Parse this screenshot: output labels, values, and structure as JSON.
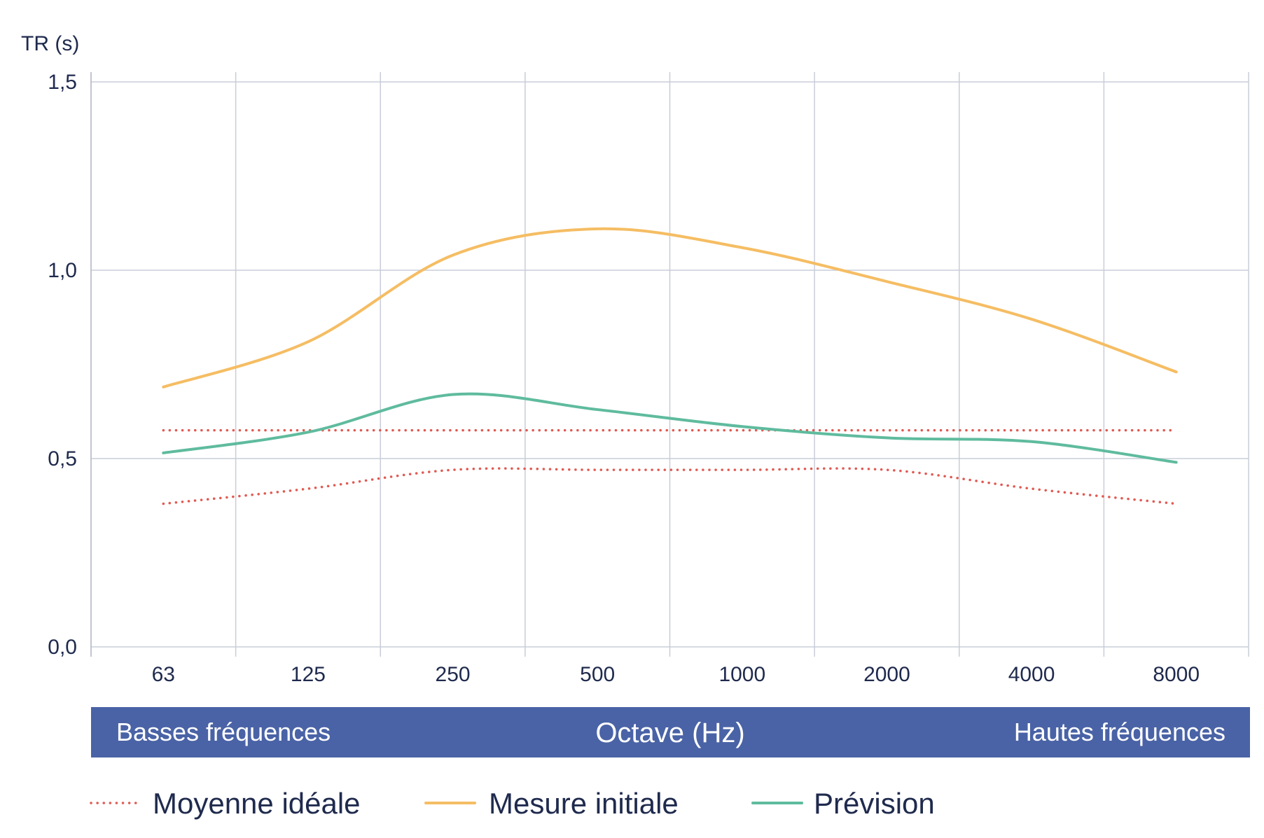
{
  "chart_data": {
    "type": "line",
    "ylabel": "TR (s)",
    "xlabel": "Octave (Hz)",
    "x_band_left": "Basses fréquences",
    "x_band_right": "Hautes fréquences",
    "categories": [
      "63",
      "125",
      "250",
      "500",
      "1000",
      "2000",
      "4000",
      "8000"
    ],
    "ylim": [
      0,
      1.5
    ],
    "yticks": [
      {
        "value": 0,
        "label": "0,0"
      },
      {
        "value": 0.5,
        "label": "0,5"
      },
      {
        "value": 1.0,
        "label": "1,0"
      },
      {
        "value": 1.5,
        "label": "1,5"
      }
    ],
    "grid": true,
    "legend_position": "bottom",
    "series": [
      {
        "name": "Moyenne idéale",
        "style": "dotted",
        "color": "#e05a52",
        "values": [
          0.575,
          0.575,
          0.575,
          0.575,
          0.575,
          0.575,
          0.575,
          0.575
        ]
      },
      {
        "name": "",
        "style": "dotted",
        "color": "#e05a52",
        "values": [
          0.38,
          0.42,
          0.47,
          0.47,
          0.47,
          0.47,
          0.42,
          0.38
        ]
      },
      {
        "name": "Mesure initiale",
        "style": "solid",
        "color": "#f5bd63",
        "values": [
          0.69,
          0.81,
          1.04,
          1.11,
          1.06,
          0.97,
          0.87,
          0.73
        ]
      },
      {
        "name": "Prévision",
        "style": "solid",
        "color": "#5fbb9e",
        "values": [
          0.515,
          0.57,
          0.67,
          0.63,
          0.585,
          0.555,
          0.545,
          0.49
        ]
      }
    ],
    "band_color": "#4a63a6",
    "legend": [
      {
        "label": "Moyenne idéale",
        "style": "dotted",
        "color": "#e05a52"
      },
      {
        "label": "Mesure initiale",
        "style": "solid",
        "color": "#f5bd63"
      },
      {
        "label": "Prévision",
        "style": "solid",
        "color": "#5fbb9e"
      }
    ]
  }
}
